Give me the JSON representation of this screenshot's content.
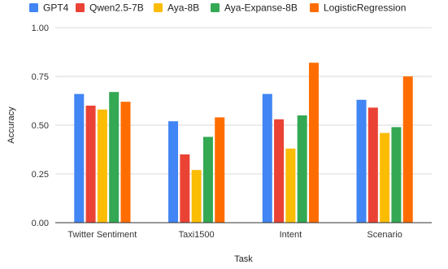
{
  "chart_data": {
    "type": "bar",
    "title": "",
    "xlabel": "Task",
    "ylabel": "Accuracy",
    "categories": [
      "Twitter Sentiment",
      "Taxi1500",
      "Intent",
      "Scenario"
    ],
    "ylim": [
      0,
      1
    ],
    "yticks": [
      0.0,
      0.25,
      0.5,
      0.75,
      1.0
    ],
    "ytick_labels": [
      "0.00",
      "0.25",
      "0.50",
      "0.75",
      "1.00"
    ],
    "grid": true,
    "legend_position": "top",
    "series": [
      {
        "name": "GPT4",
        "color": "#4285f4",
        "values": [
          0.66,
          0.52,
          0.66,
          0.63
        ]
      },
      {
        "name": "Qwen2.5-7B",
        "color": "#ea4335",
        "values": [
          0.6,
          0.35,
          0.53,
          0.59
        ]
      },
      {
        "name": "Aya-8B",
        "color": "#fbbc04",
        "values": [
          0.58,
          0.27,
          0.38,
          0.46
        ]
      },
      {
        "name": "Aya-Expanse-8B",
        "color": "#34a853",
        "values": [
          0.67,
          0.44,
          0.55,
          0.49
        ]
      },
      {
        "name": "LogisticRegression",
        "color": "#ff6d01",
        "values": [
          0.62,
          0.54,
          0.82,
          0.75
        ]
      }
    ]
  }
}
